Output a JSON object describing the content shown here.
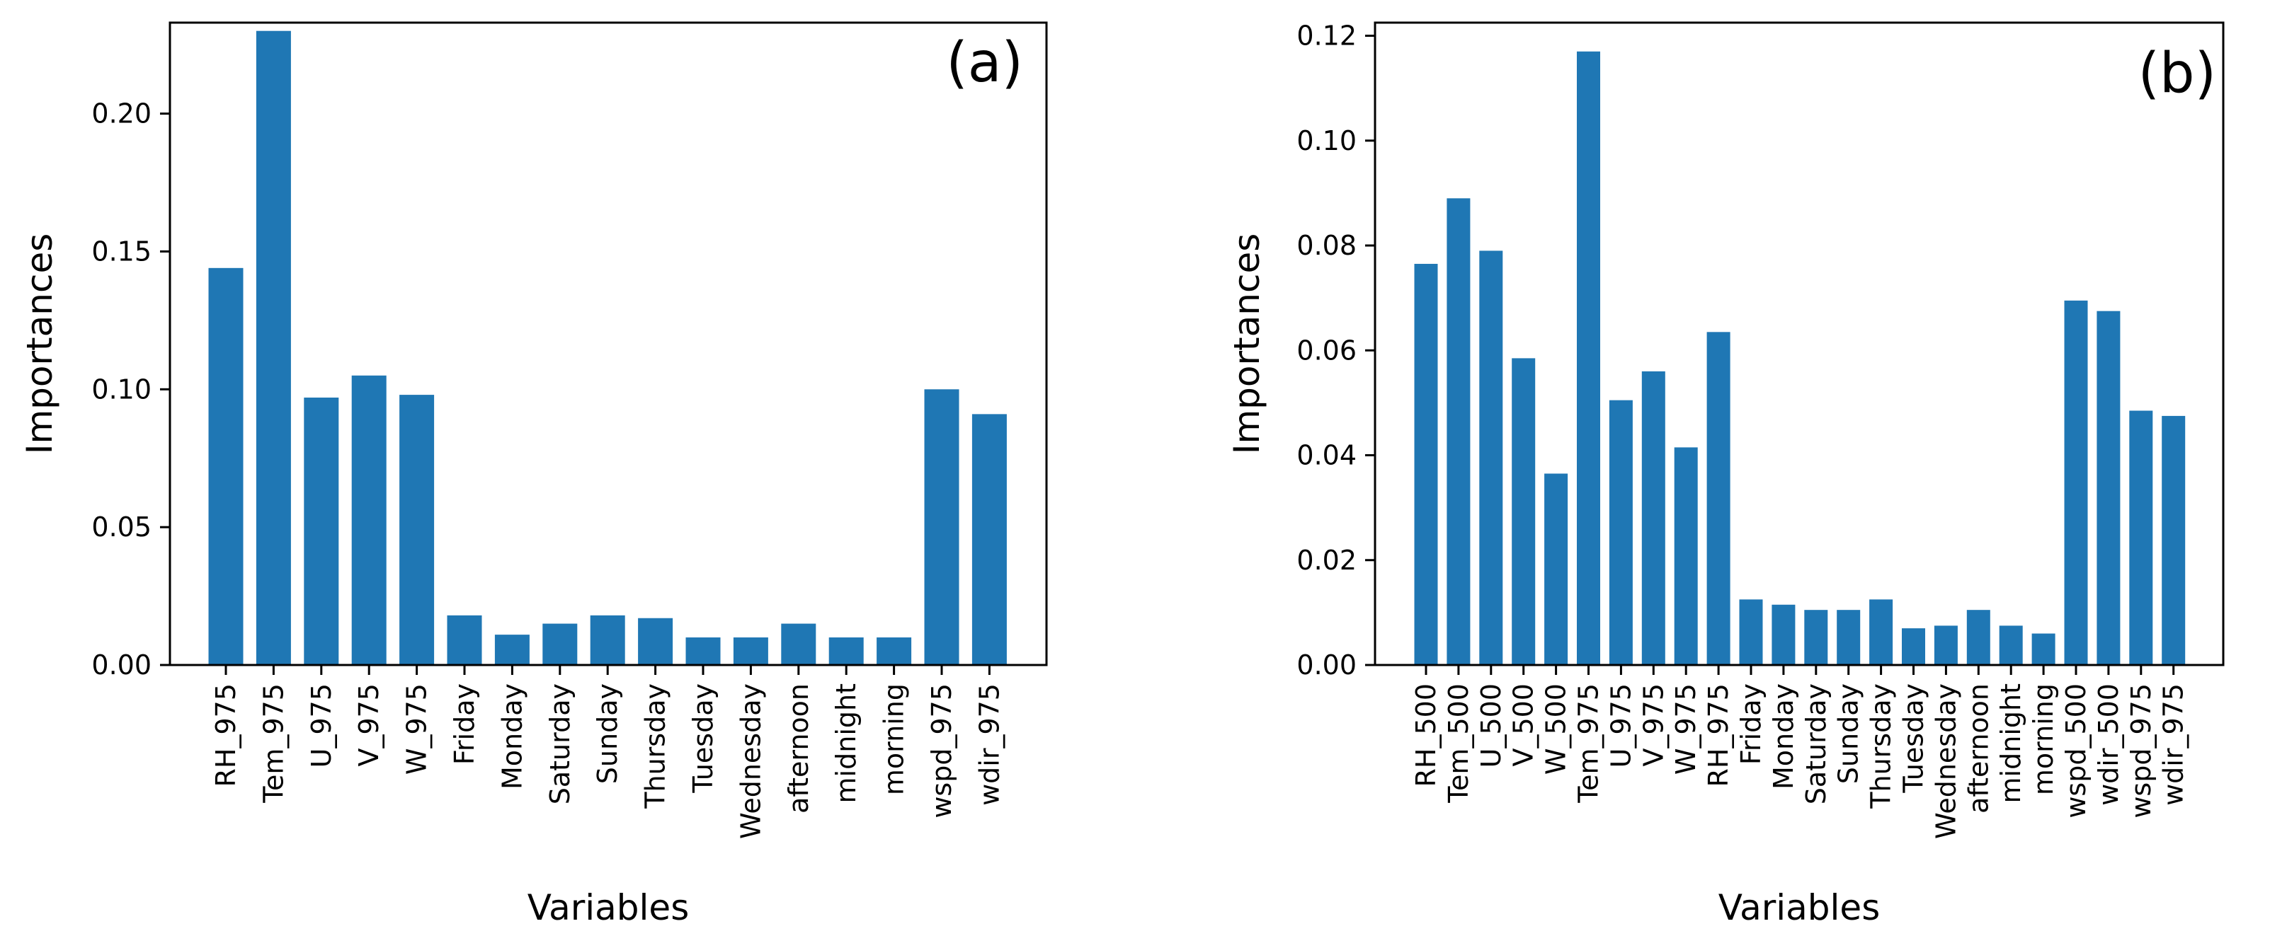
{
  "colors": {
    "bar": "#1f77b4",
    "axis": "#000000",
    "background": "#ffffff"
  },
  "chart_data": [
    {
      "type": "bar",
      "panel_label": "(a)",
      "xlabel": "Variables",
      "ylabel": "Importances",
      "ylim": [
        0,
        0.233
      ],
      "yticks": [
        "0.00",
        "0.05",
        "0.10",
        "0.15",
        "0.20"
      ],
      "grid": false,
      "categories": [
        "RH_975",
        "Tem_975",
        "U_975",
        "V_975",
        "W_975",
        "Friday",
        "Monday",
        "Saturday",
        "Sunday",
        "Thursday",
        "Tuesday",
        "Wednesday",
        "afternoon",
        "midnight",
        "morning",
        "wspd_975",
        "wdir_975"
      ],
      "values": [
        0.144,
        0.23,
        0.097,
        0.105,
        0.098,
        0.018,
        0.011,
        0.015,
        0.018,
        0.017,
        0.01,
        0.01,
        0.015,
        0.01,
        0.01,
        0.1,
        0.091
      ]
    },
    {
      "type": "bar",
      "panel_label": "(b)",
      "xlabel": "Variables",
      "ylabel": "Importances",
      "ylim": [
        0,
        0.1225
      ],
      "yticks": [
        "0.00",
        "0.02",
        "0.04",
        "0.06",
        "0.08",
        "0.10",
        "0.12"
      ],
      "grid": false,
      "categories": [
        "RH_500",
        "Tem_500",
        "U_500",
        "V_500",
        "W_500",
        "Tem_975",
        "U_975",
        "V_975",
        "W_975",
        "RH_975",
        "Friday",
        "Monday",
        "Saturday",
        "Sunday",
        "Thursday",
        "Tuesday",
        "Wednesday",
        "afternoon",
        "midnight",
        "morning",
        "wspd_500",
        "wdir_500",
        "wspd_975",
        "wdir_975"
      ],
      "values": [
        0.0765,
        0.089,
        0.079,
        0.0585,
        0.0365,
        0.117,
        0.0505,
        0.056,
        0.0415,
        0.0635,
        0.0125,
        0.0115,
        0.0105,
        0.0105,
        0.0125,
        0.007,
        0.0075,
        0.0105,
        0.0075,
        0.006,
        0.0695,
        0.0675,
        0.0485,
        0.0475
      ]
    }
  ]
}
